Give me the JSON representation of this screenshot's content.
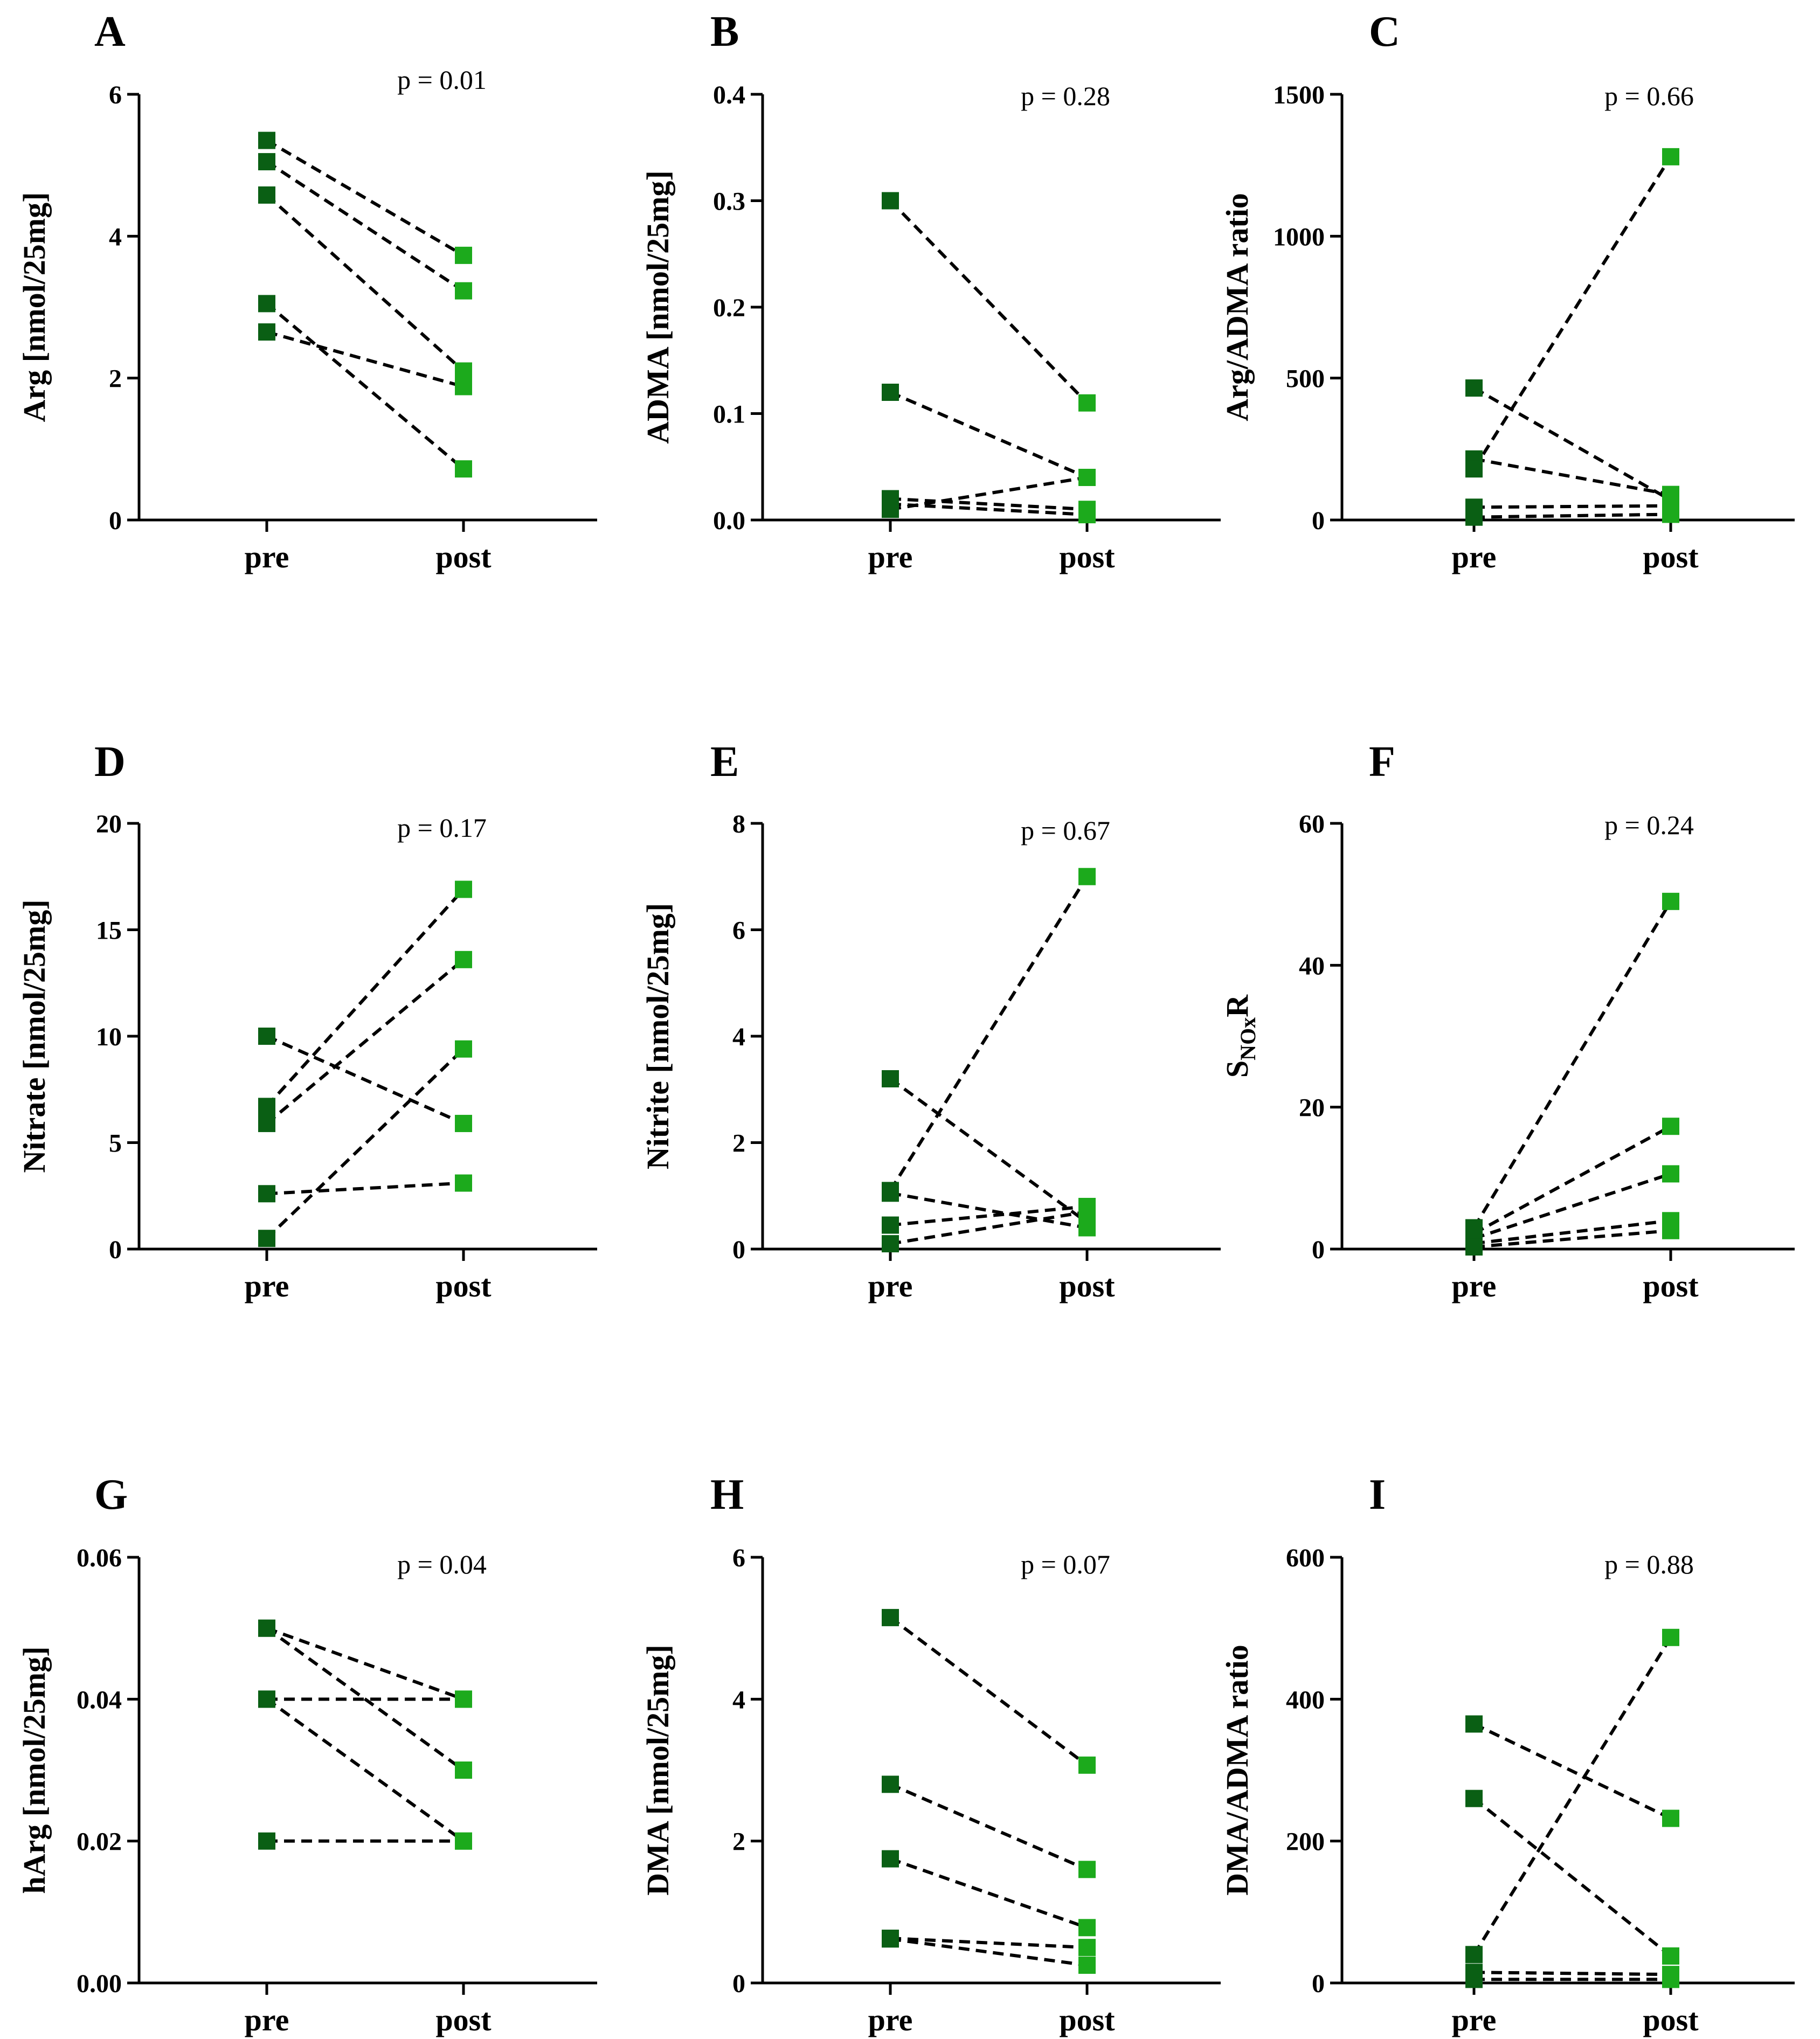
{
  "colors": {
    "pre": "#0a5f14",
    "post": "#1caa1c"
  },
  "chart_data": [
    {
      "type": "line",
      "panel": "A",
      "title": "",
      "ylabel": "Arg [nmol/25mg]",
      "p_value": "p = 0.01",
      "categories": [
        "pre",
        "post"
      ],
      "ylim": [
        0,
        6
      ],
      "yticks": [
        0,
        2,
        4,
        6
      ],
      "ytick_labels": [
        "0",
        "2",
        "4",
        "6"
      ],
      "pairs": [
        [
          5.35,
          3.73
        ],
        [
          5.05,
          3.23
        ],
        [
          4.58,
          2.1
        ],
        [
          3.05,
          0.72
        ],
        [
          2.65,
          1.88
        ]
      ]
    },
    {
      "type": "line",
      "panel": "B",
      "title": "",
      "ylabel": "ADMA [nmol/25mg]",
      "p_value": "p = 0.28",
      "categories": [
        "pre",
        "post"
      ],
      "ylim": [
        0,
        0.4
      ],
      "yticks": [
        0,
        0.1,
        0.2,
        0.3,
        0.4
      ],
      "ytick_labels": [
        "0.0",
        "0.1",
        "0.2",
        "0.3",
        "0.4"
      ],
      "pairs": [
        [
          0.3,
          0.11
        ],
        [
          0.12,
          0.04
        ],
        [
          0.02,
          0.01
        ],
        [
          0.015,
          0.005
        ],
        [
          0.01,
          0.04
        ]
      ]
    },
    {
      "type": "line",
      "panel": "C",
      "title": "",
      "ylabel": "Arg/ADMA ratio",
      "p_value": "p = 0.66",
      "categories": [
        "pre",
        "post"
      ],
      "ylim": [
        0,
        1500
      ],
      "yticks": [
        0,
        500,
        1000,
        1500
      ],
      "ytick_labels": [
        "0",
        "500",
        "1000",
        "1500"
      ],
      "pairs": [
        [
          465,
          70
        ],
        [
          215,
          90
        ],
        [
          180,
          1280
        ],
        [
          45,
          50
        ],
        [
          10,
          20
        ]
      ]
    },
    {
      "type": "line",
      "panel": "D",
      "title": "",
      "ylabel": "Nitrate [nmol/25mg]",
      "p_value": "p = 0.17",
      "categories": [
        "pre",
        "post"
      ],
      "ylim": [
        0,
        20
      ],
      "yticks": [
        0,
        5,
        10,
        15,
        20
      ],
      "ytick_labels": [
        "0",
        "5",
        "10",
        "15",
        "20"
      ],
      "pairs": [
        [
          10,
          5.9
        ],
        [
          6.7,
          16.9
        ],
        [
          5.9,
          13.6
        ],
        [
          2.6,
          3.1
        ],
        [
          0.5,
          9.4
        ]
      ]
    },
    {
      "type": "line",
      "panel": "E",
      "title": "",
      "ylabel": "Nitrite [nmol/25mg]",
      "p_value": "p = 0.67",
      "categories": [
        "pre",
        "post"
      ],
      "ylim": [
        0,
        8
      ],
      "yticks": [
        0,
        2,
        4,
        6,
        8
      ],
      "ytick_labels": [
        "0",
        "2",
        "4",
        "6",
        "8"
      ],
      "pairs": [
        [
          3.2,
          0.5
        ],
        [
          1.1,
          7.0
        ],
        [
          1.05,
          0.4
        ],
        [
          0.45,
          0.8
        ],
        [
          0.1,
          0.7
        ]
      ]
    },
    {
      "type": "line",
      "panel": "F",
      "title": "",
      "ylabel": "S",
      "ylabel_sub": "NOx",
      "ylabel_suffix": "R",
      "p_value": "p = 0.24",
      "categories": [
        "pre",
        "post"
      ],
      "ylim": [
        0,
        60
      ],
      "yticks": [
        0,
        20,
        40,
        60
      ],
      "ytick_labels": [
        "0",
        "20",
        "40",
        "60"
      ],
      "pairs": [
        [
          3.0,
          49.0
        ],
        [
          2.2,
          17.3
        ],
        [
          1.5,
          10.6
        ],
        [
          0.8,
          4.0
        ],
        [
          0.3,
          2.6
        ]
      ]
    },
    {
      "type": "line",
      "panel": "G",
      "title": "",
      "ylabel": "hArg [nmol/25mg]",
      "p_value": "p = 0.04",
      "categories": [
        "pre",
        "post"
      ],
      "ylim": [
        0,
        0.06
      ],
      "yticks": [
        0,
        0.02,
        0.04,
        0.06
      ],
      "ytick_labels": [
        "0.00",
        "0.02",
        "0.04",
        "0.06"
      ],
      "pairs": [
        [
          0.05,
          0.04
        ],
        [
          0.05,
          0.03
        ],
        [
          0.04,
          0.04
        ],
        [
          0.04,
          0.02
        ],
        [
          0.02,
          0.02
        ]
      ]
    },
    {
      "type": "line",
      "panel": "H",
      "title": "",
      "ylabel": "DMA [nmol/25mg]",
      "p_value": "p = 0.07",
      "categories": [
        "pre",
        "post"
      ],
      "ylim": [
        0,
        6
      ],
      "yticks": [
        0,
        2,
        4,
        6
      ],
      "ytick_labels": [
        "0",
        "2",
        "4",
        "6"
      ],
      "pairs": [
        [
          5.15,
          3.07
        ],
        [
          2.8,
          1.6
        ],
        [
          1.75,
          0.78
        ],
        [
          0.63,
          0.5
        ],
        [
          0.62,
          0.25
        ]
      ]
    },
    {
      "type": "line",
      "panel": "I",
      "title": "",
      "ylabel": "DMA/ADMA ratio",
      "p_value": "p = 0.88",
      "categories": [
        "pre",
        "post"
      ],
      "ylim": [
        0,
        600
      ],
      "yticks": [
        0,
        200,
        400,
        600
      ],
      "ytick_labels": [
        "0",
        "200",
        "400",
        "600"
      ],
      "pairs": [
        [
          365,
          232
        ],
        [
          260,
          38
        ],
        [
          40,
          487
        ],
        [
          15,
          12
        ],
        [
          5,
          5
        ]
      ]
    }
  ]
}
